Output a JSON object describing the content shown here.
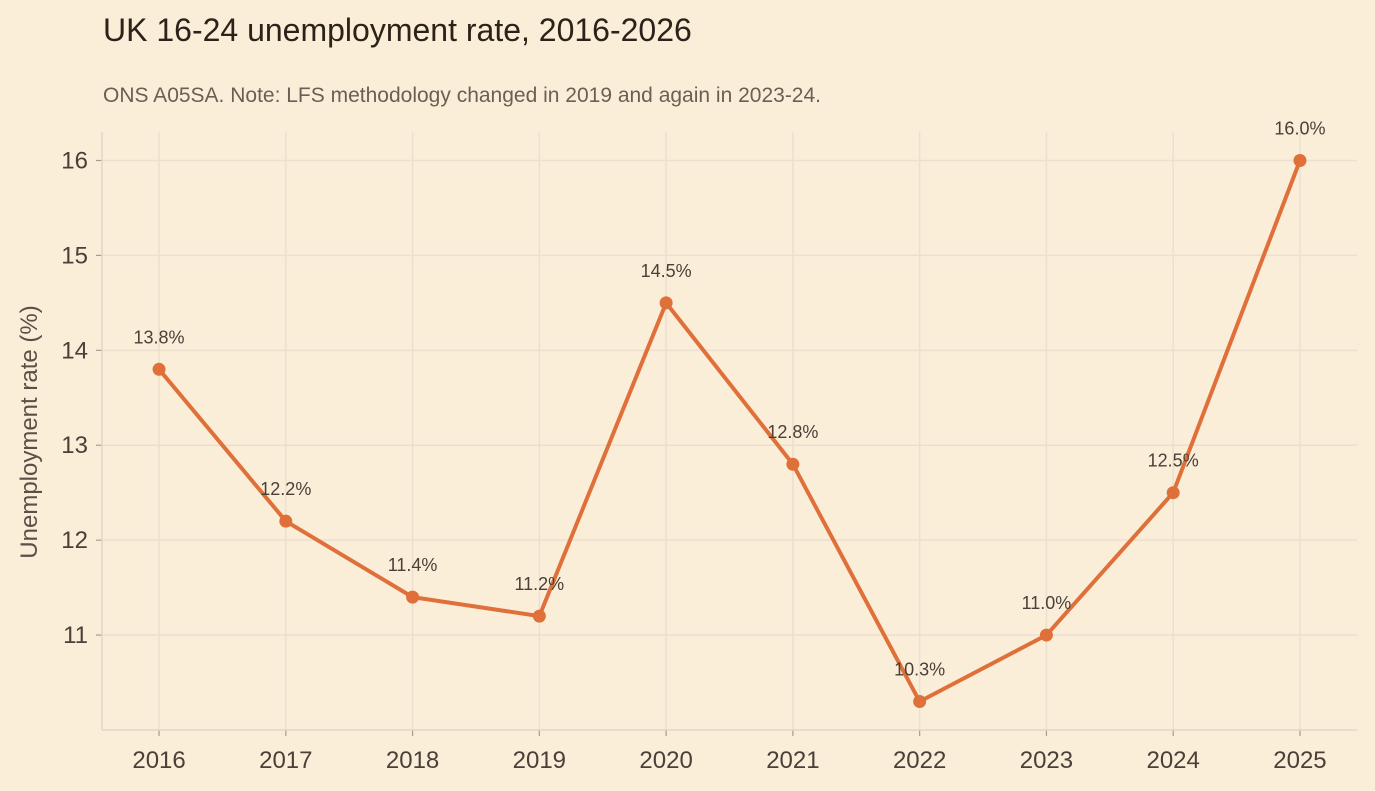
{
  "chart_data": {
    "type": "line",
    "title": "UK 16-24 unemployment rate, 2016-2026",
    "subtitle": "ONS A05SA. Note: LFS methodology changed in 2019 and again in 2023-24.",
    "xlabel": "",
    "ylabel": "Unemployment rate (%)",
    "x": [
      2016,
      2017,
      2018,
      2019,
      2020,
      2021,
      2022,
      2023,
      2024,
      2025
    ],
    "series": [
      {
        "values": [
          13.8,
          12.2,
          11.4,
          11.2,
          14.5,
          12.8,
          10.3,
          11.0,
          12.5,
          16.0
        ],
        "labels": [
          "13.8%",
          "12.2%",
          "11.4%",
          "11.2%",
          "14.5%",
          "12.8%",
          "10.3%",
          "11.0%",
          "12.5%",
          "16.0%"
        ],
        "color": "#e0703a"
      }
    ],
    "ylim": [
      10.0,
      16.3
    ],
    "xlim": [
      2015.55,
      2025.45
    ],
    "yticks": [
      11,
      12,
      13,
      14,
      15,
      16
    ],
    "ytick_labels": [
      "11",
      "12",
      "13",
      "14",
      "15",
      "16"
    ],
    "xtick_labels": [
      "2016",
      "2017",
      "2018",
      "2019",
      "2020",
      "2021",
      "2022",
      "2023",
      "2024",
      "2025"
    ],
    "grid": true,
    "legend": "none"
  },
  "colors": {
    "background": "#fbeed9",
    "line": "#e0703a",
    "grid": "#ecdfd0"
  }
}
